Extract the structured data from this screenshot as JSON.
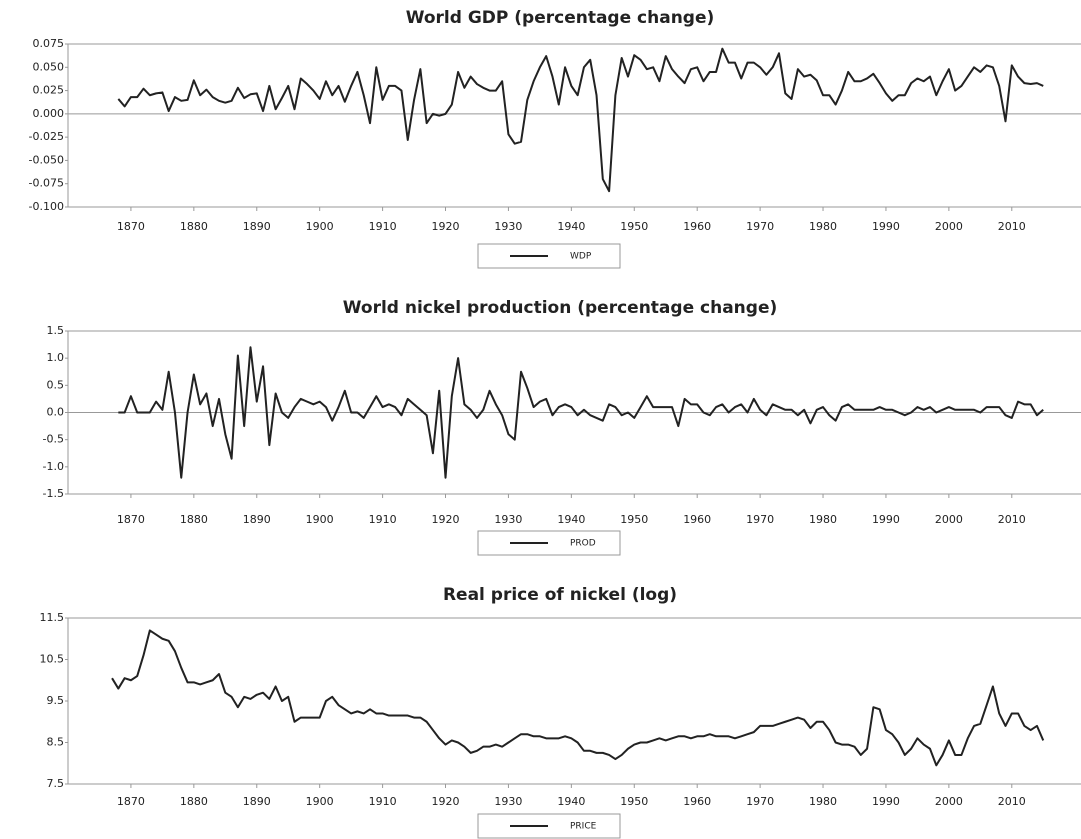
{
  "chart_data": [
    {
      "type": "line",
      "title": "World GDP (percentage change)",
      "x": [
        1868,
        1869,
        1870,
        1871,
        1872,
        1873,
        1874,
        1875,
        1876,
        1877,
        1878,
        1879,
        1880,
        1881,
        1882,
        1883,
        1884,
        1885,
        1886,
        1887,
        1888,
        1889,
        1890,
        1891,
        1892,
        1893,
        1894,
        1895,
        1896,
        1897,
        1898,
        1899,
        1900,
        1901,
        1902,
        1903,
        1904,
        1905,
        1906,
        1907,
        1908,
        1909,
        1910,
        1911,
        1912,
        1913,
        1914,
        1915,
        1916,
        1917,
        1918,
        1919,
        1920,
        1921,
        1922,
        1923,
        1924,
        1925,
        1926,
        1927,
        1928,
        1929,
        1930,
        1931,
        1932,
        1933,
        1934,
        1935,
        1936,
        1937,
        1938,
        1939,
        1940,
        1941,
        1942,
        1943,
        1944,
        1945,
        1946,
        1947,
        1948,
        1949,
        1950,
        1951,
        1952,
        1953,
        1954,
        1955,
        1956,
        1957,
        1958,
        1959,
        1960,
        1961,
        1962,
        1963,
        1964,
        1965,
        1966,
        1967,
        1968,
        1969,
        1970,
        1971,
        1972,
        1973,
        1974,
        1975,
        1976,
        1977,
        1978,
        1979,
        1980,
        1981,
        1982,
        1983,
        1984,
        1985,
        1986,
        1987,
        1988,
        1989,
        1990,
        1991,
        1992,
        1993,
        1994,
        1995,
        1996,
        1997,
        1998,
        1999,
        2000,
        2001,
        2002,
        2003,
        2004,
        2005,
        2006,
        2007,
        2008,
        2009,
        2010,
        2011,
        2012,
        2013,
        2014,
        2015
      ],
      "series": [
        {
          "name": "WDP",
          "color": "#222222",
          "values": [
            0.016,
            0.008,
            0.018,
            0.018,
            0.027,
            0.02,
            0.022,
            0.023,
            0.003,
            0.018,
            0.014,
            0.015,
            0.036,
            0.02,
            0.026,
            0.018,
            0.014,
            0.012,
            0.014,
            0.028,
            0.017,
            0.021,
            0.022,
            0.003,
            0.03,
            0.005,
            0.017,
            0.03,
            0.005,
            0.038,
            0.032,
            0.025,
            0.016,
            0.035,
            0.02,
            0.03,
            0.013,
            0.03,
            0.045,
            0.02,
            -0.01,
            0.05,
            0.015,
            0.03,
            0.03,
            0.025,
            -0.028,
            0.015,
            0.048,
            -0.01,
            0.0,
            -0.002,
            0.0,
            0.01,
            0.045,
            0.028,
            0.04,
            0.032,
            0.028,
            0.025,
            0.025,
            0.035,
            -0.022,
            -0.032,
            -0.03,
            0.015,
            0.035,
            0.05,
            0.062,
            0.04,
            0.01,
            0.05,
            0.03,
            0.02,
            0.05,
            0.058,
            0.02,
            -0.07,
            -0.083,
            0.02,
            0.06,
            0.04,
            0.063,
            0.058,
            0.048,
            0.05,
            0.035,
            0.062,
            0.048,
            0.04,
            0.033,
            0.048,
            0.05,
            0.035,
            0.045,
            0.045,
            0.07,
            0.055,
            0.055,
            0.038,
            0.055,
            0.055,
            0.05,
            0.042,
            0.05,
            0.065,
            0.022,
            0.016,
            0.048,
            0.04,
            0.042,
            0.036,
            0.02,
            0.02,
            0.01,
            0.025,
            0.045,
            0.035,
            0.035,
            0.038,
            0.043,
            0.033,
            0.022,
            0.014,
            0.02,
            0.02,
            0.033,
            0.038,
            0.035,
            0.04,
            0.02,
            0.035,
            0.048,
            0.025,
            0.03,
            0.04,
            0.05,
            0.045,
            0.052,
            0.05,
            0.03,
            -0.008,
            0.052,
            0.04,
            0.033,
            0.032,
            0.033,
            0.03
          ]
        }
      ],
      "xlim": [
        1860,
        2021
      ],
      "ylim": [
        -0.1,
        0.075
      ],
      "xticks": [
        1870,
        1880,
        1890,
        1900,
        1910,
        1920,
        1930,
        1940,
        1950,
        1960,
        1970,
        1980,
        1990,
        2000,
        2010
      ],
      "yticks": [
        0.075,
        {
          "value": 0.05,
          "label": "0.050"
        },
        0.025,
        {
          "value": 0,
          "label": "0.000"
        },
        -0.025,
        {
          "value": -0.05,
          "label": "-0.050"
        },
        -0.075,
        {
          "value": -0.1,
          "label": "-0.100"
        }
      ],
      "zero_line": true
    },
    {
      "type": "line",
      "title": "World nickel production (percentage change)",
      "x": [
        1868,
        1869,
        1870,
        1871,
        1872,
        1873,
        1874,
        1875,
        1876,
        1877,
        1878,
        1879,
        1880,
        1881,
        1882,
        1883,
        1884,
        1885,
        1886,
        1887,
        1888,
        1889,
        1890,
        1891,
        1892,
        1893,
        1894,
        1895,
        1896,
        1897,
        1898,
        1899,
        1900,
        1901,
        1902,
        1903,
        1904,
        1905,
        1906,
        1907,
        1908,
        1909,
        1910,
        1911,
        1912,
        1913,
        1914,
        1915,
        1916,
        1917,
        1918,
        1919,
        1920,
        1921,
        1922,
        1923,
        1924,
        1925,
        1926,
        1927,
        1928,
        1929,
        1930,
        1931,
        1932,
        1933,
        1934,
        1935,
        1936,
        1937,
        1938,
        1939,
        1940,
        1941,
        1942,
        1943,
        1944,
        1945,
        1946,
        1947,
        1948,
        1949,
        1950,
        1951,
        1952,
        1953,
        1954,
        1955,
        1956,
        1957,
        1958,
        1959,
        1960,
        1961,
        1962,
        1963,
        1964,
        1965,
        1966,
        1967,
        1968,
        1969,
        1970,
        1971,
        1972,
        1973,
        1974,
        1975,
        1976,
        1977,
        1978,
        1979,
        1980,
        1981,
        1982,
        1983,
        1984,
        1985,
        1986,
        1987,
        1988,
        1989,
        1990,
        1991,
        1992,
        1993,
        1994,
        1995,
        1996,
        1997,
        1998,
        1999,
        2000,
        2001,
        2002,
        2003,
        2004,
        2005,
        2006,
        2007,
        2008,
        2009,
        2010,
        2011,
        2012,
        2013,
        2014,
        2015
      ],
      "series": [
        {
          "name": "PROD",
          "color": "#222222",
          "values": [
            0.0,
            0.0,
            0.3,
            0.0,
            0.0,
            0.0,
            0.2,
            0.05,
            0.75,
            0.0,
            -1.2,
            0.0,
            0.7,
            0.15,
            0.35,
            -0.25,
            0.25,
            -0.4,
            -0.85,
            1.05,
            -0.25,
            1.2,
            0.2,
            0.85,
            -0.6,
            0.35,
            0.0,
            -0.1,
            0.1,
            0.25,
            0.2,
            0.15,
            0.2,
            0.1,
            -0.15,
            0.1,
            0.4,
            0.0,
            0.0,
            -0.1,
            0.1,
            0.3,
            0.1,
            0.15,
            0.1,
            -0.05,
            0.25,
            0.15,
            0.05,
            -0.05,
            -0.75,
            0.4,
            -1.2,
            0.3,
            1.0,
            0.15,
            0.05,
            -0.1,
            0.05,
            0.4,
            0.15,
            -0.05,
            -0.4,
            -0.5,
            0.75,
            0.45,
            0.1,
            0.2,
            0.25,
            -0.05,
            0.1,
            0.15,
            0.1,
            -0.05,
            0.05,
            -0.05,
            -0.1,
            -0.15,
            0.15,
            0.1,
            -0.05,
            0.0,
            -0.1,
            0.1,
            0.3,
            0.1,
            0.1,
            0.1,
            0.1,
            -0.25,
            0.25,
            0.15,
            0.15,
            0.0,
            -0.05,
            0.1,
            0.15,
            0.0,
            0.1,
            0.15,
            0.0,
            0.25,
            0.05,
            -0.05,
            0.15,
            0.1,
            0.05,
            0.05,
            -0.05,
            0.05,
            -0.2,
            0.05,
            0.1,
            -0.05,
            -0.15,
            0.1,
            0.15,
            0.05,
            0.05,
            0.05,
            0.05,
            0.1,
            0.05,
            0.05,
            0.0,
            -0.05,
            0.0,
            0.1,
            0.05,
            0.1,
            0.0,
            0.05,
            0.1,
            0.05,
            0.05,
            0.05,
            0.05,
            0.0,
            0.1,
            0.1,
            0.1,
            -0.05,
            -0.1,
            0.2,
            0.15,
            0.15,
            -0.05,
            0.05
          ]
        }
      ],
      "xlim": [
        1860,
        2021
      ],
      "ylim": [
        -1.5,
        1.5
      ],
      "xticks": [
        1870,
        1880,
        1890,
        1900,
        1910,
        1920,
        1930,
        1940,
        1950,
        1960,
        1970,
        1980,
        1990,
        2000,
        2010
      ],
      "yticks": [
        1.5,
        {
          "value": 1,
          "label": "1.0"
        },
        0.5,
        {
          "value": 0,
          "label": "0.0"
        },
        -0.5,
        {
          "value": -1,
          "label": "-1.0"
        },
        -1.5
      ],
      "zero_line": true
    },
    {
      "type": "line",
      "title": "Real price of nickel (log)",
      "x": [
        1867,
        1868,
        1869,
        1870,
        1871,
        1872,
        1873,
        1874,
        1875,
        1876,
        1877,
        1878,
        1879,
        1880,
        1881,
        1882,
        1883,
        1884,
        1885,
        1886,
        1887,
        1888,
        1889,
        1890,
        1891,
        1892,
        1893,
        1894,
        1895,
        1896,
        1897,
        1898,
        1899,
        1900,
        1901,
        1902,
        1903,
        1904,
        1905,
        1906,
        1907,
        1908,
        1909,
        1910,
        1911,
        1912,
        1913,
        1914,
        1915,
        1916,
        1917,
        1918,
        1919,
        1920,
        1921,
        1922,
        1923,
        1924,
        1925,
        1926,
        1927,
        1928,
        1929,
        1930,
        1931,
        1932,
        1933,
        1934,
        1935,
        1936,
        1937,
        1938,
        1939,
        1940,
        1941,
        1942,
        1943,
        1944,
        1945,
        1946,
        1947,
        1948,
        1949,
        1950,
        1951,
        1952,
        1953,
        1954,
        1955,
        1956,
        1957,
        1958,
        1959,
        1960,
        1961,
        1962,
        1963,
        1964,
        1965,
        1966,
        1967,
        1968,
        1969,
        1970,
        1971,
        1972,
        1973,
        1974,
        1975,
        1976,
        1977,
        1978,
        1979,
        1980,
        1981,
        1982,
        1983,
        1984,
        1985,
        1986,
        1987,
        1988,
        1989,
        1990,
        1991,
        1992,
        1993,
        1994,
        1995,
        1996,
        1997,
        1998,
        1999,
        2000,
        2001,
        2002,
        2003,
        2004,
        2005,
        2006,
        2007,
        2008,
        2009,
        2010,
        2011,
        2012,
        2013,
        2014,
        2015
      ],
      "series": [
        {
          "name": "PRICE",
          "color": "#222222",
          "values": [
            10.05,
            9.8,
            10.05,
            10.0,
            10.1,
            10.6,
            11.2,
            11.1,
            11.0,
            10.95,
            10.7,
            10.3,
            9.95,
            9.95,
            9.9,
            9.95,
            10.0,
            10.15,
            9.7,
            9.6,
            9.35,
            9.6,
            9.55,
            9.65,
            9.7,
            9.55,
            9.85,
            9.5,
            9.6,
            9.0,
            9.1,
            9.1,
            9.1,
            9.1,
            9.5,
            9.6,
            9.4,
            9.3,
            9.2,
            9.25,
            9.2,
            9.3,
            9.2,
            9.2,
            9.15,
            9.15,
            9.15,
            9.15,
            9.1,
            9.1,
            9.0,
            8.8,
            8.6,
            8.45,
            8.55,
            8.5,
            8.4,
            8.25,
            8.3,
            8.4,
            8.4,
            8.45,
            8.4,
            8.5,
            8.6,
            8.7,
            8.7,
            8.65,
            8.65,
            8.6,
            8.6,
            8.6,
            8.65,
            8.6,
            8.5,
            8.3,
            8.3,
            8.25,
            8.25,
            8.2,
            8.1,
            8.2,
            8.35,
            8.45,
            8.5,
            8.5,
            8.55,
            8.6,
            8.55,
            8.6,
            8.65,
            8.65,
            8.6,
            8.65,
            8.65,
            8.7,
            8.65,
            8.65,
            8.65,
            8.6,
            8.65,
            8.7,
            8.75,
            8.9,
            8.9,
            8.9,
            8.95,
            9.0,
            9.05,
            9.1,
            9.05,
            8.85,
            9.0,
            9.0,
            8.8,
            8.5,
            8.45,
            8.45,
            8.4,
            8.2,
            8.35,
            9.35,
            9.3,
            8.8,
            8.7,
            8.5,
            8.2,
            8.35,
            8.6,
            8.45,
            8.35,
            7.95,
            8.2,
            8.55,
            8.2,
            8.2,
            8.6,
            8.9,
            8.95,
            9.4,
            9.85,
            9.2,
            8.9,
            9.2,
            9.2,
            8.9,
            8.8,
            8.9,
            8.55
          ]
        }
      ],
      "xlim": [
        1860,
        2021
      ],
      "ylim": [
        7.5,
        11.5
      ],
      "xticks": [
        1870,
        1880,
        1890,
        1900,
        1910,
        1920,
        1930,
        1940,
        1950,
        1960,
        1970,
        1980,
        1990,
        2000,
        2010
      ],
      "yticks": [
        11.5,
        10.5,
        9.5,
        8.5,
        7.5
      ],
      "zero_line": false
    }
  ]
}
